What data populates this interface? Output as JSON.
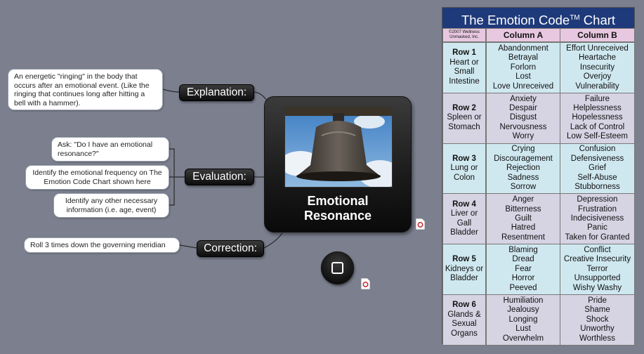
{
  "central": {
    "title_line1": "Emotional",
    "title_line2": "Resonance"
  },
  "topics": {
    "explanation": "Explanation:",
    "evaluation": "Evaluation:",
    "correction": "Correction:"
  },
  "notes": {
    "explanation": "An energetic \"ringing\" in the body that occurs after an emotional event. (Like the ringing that continues long after hitting a bell with a hammer).",
    "eval_ask": "Ask: \"Do I have an emotional resonance?\"",
    "eval_identify": "Identify the emotional frequency on The Emotion Code Chart shown here",
    "eval_other": "Identify any other necessary information (i.e. age, event)",
    "correction": "Roll 3 times down the governing meridian"
  },
  "chart": {
    "title": "The Emotion Code",
    "title_mark": "TM",
    "title_tail": " Chart",
    "copyright_line1": "©2007 Wellness",
    "copyright_line2": "Unmasked, Inc.",
    "column_a": "Column A",
    "column_b": "Column B",
    "rows": [
      {
        "label": "Row 1",
        "organs": [
          "Heart or",
          "Small",
          "Intestine"
        ],
        "a": [
          "Abandonment",
          "Betrayal",
          "Forlorn",
          "Lost",
          "Love Unreceived"
        ],
        "b": [
          "Effort Unreceived",
          "Heartache",
          "Insecurity",
          "Overjoy",
          "Vulnerability"
        ]
      },
      {
        "label": "Row 2",
        "organs": [
          "Spleen or",
          "Stomach"
        ],
        "a": [
          "Anxiety",
          "Despair",
          "Disgust",
          "Nervousness",
          "Worry"
        ],
        "b": [
          "Failure",
          "Helplessness",
          "Hopelessness",
          "Lack of Control",
          "Low Self-Esteem"
        ]
      },
      {
        "label": "Row 3",
        "organs": [
          "Lung or",
          "Colon"
        ],
        "a": [
          "Crying",
          "Discouragement",
          "Rejection",
          "Sadness",
          "Sorrow"
        ],
        "b": [
          "Confusion",
          "Defensiveness",
          "Grief",
          "Self-Abuse",
          "Stubborness"
        ]
      },
      {
        "label": "Row 4",
        "organs": [
          "Liver or",
          "Gall",
          "Bladder"
        ],
        "a": [
          "Anger",
          "Bitterness",
          "Guilt",
          "Hatred",
          "Resentment"
        ],
        "b": [
          "Depression",
          "Frustration",
          "Indecisiveness",
          "Panic",
          "Taken for Granted"
        ]
      },
      {
        "label": "Row 5",
        "organs": [
          "Kidneys or",
          "Bladder"
        ],
        "a": [
          "Blaming",
          "Dread",
          "Fear",
          "Horror",
          "Peeved"
        ],
        "b": [
          "Conflict",
          "Creative Insecurity",
          "Terror",
          "Unsupported",
          "Wishy Washy"
        ]
      },
      {
        "label": "Row 6",
        "organs": [
          "Glands &",
          "Sexual",
          "Organs"
        ],
        "a": [
          "Humiliation",
          "Jealousy",
          "Longing",
          "Lust",
          "Overwhelm"
        ],
        "b": [
          "Pride",
          "Shame",
          "Shock",
          "Unworthy",
          "Worthless"
        ]
      }
    ]
  },
  "colors": {
    "background": "#7b7f8e",
    "chart_header": "#1f3a7a",
    "column_header": "#e8c8e0",
    "row_blue": "#cfe8f0",
    "row_lavender": "#d6d3e3"
  }
}
